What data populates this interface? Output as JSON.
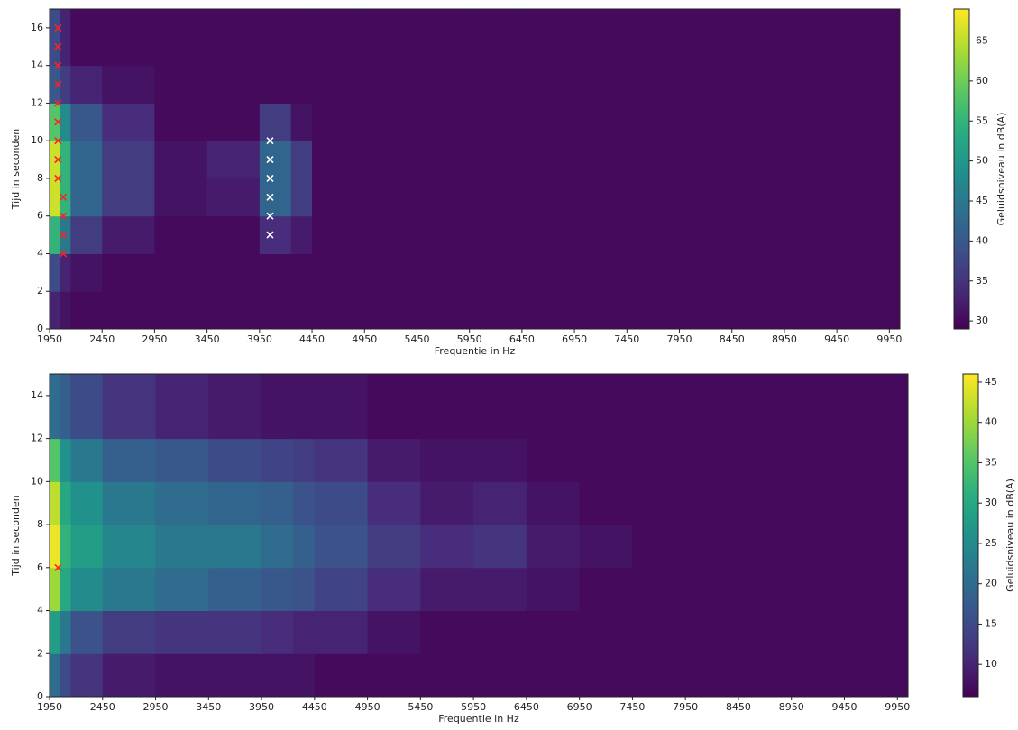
{
  "chart_data": [
    {
      "type": "heatmap",
      "xlabel": "Frequentie in Hz",
      "ylabel": "Tijd in seconden",
      "xlim": [
        1950,
        10050
      ],
      "ylim": [
        0,
        17
      ],
      "xticks": [
        1950,
        2450,
        2950,
        3450,
        3950,
        4450,
        4950,
        5450,
        5950,
        6450,
        6950,
        7450,
        7950,
        8450,
        8950,
        9450,
        9950
      ],
      "yticks": [
        0,
        2,
        4,
        6,
        8,
        10,
        12,
        14,
        16
      ],
      "xbins": [
        1950,
        2050,
        2150,
        2450,
        2950,
        3450,
        3950,
        4250,
        4450,
        4950,
        5450,
        5950,
        6450,
        6950,
        7450,
        8450,
        10050
      ],
      "ybins": [
        0,
        2,
        4,
        6,
        8,
        10,
        12,
        14,
        17
      ],
      "z": [
        [
          33,
          31,
          30,
          30,
          30,
          30,
          30,
          30,
          30,
          30,
          30,
          30,
          30,
          30,
          30,
          30
        ],
        [
          38,
          33,
          31,
          30,
          30,
          30,
          30,
          30,
          30,
          30,
          30,
          30,
          30,
          30,
          30,
          30
        ],
        [
          55,
          45,
          36,
          32,
          30,
          30,
          34,
          32,
          30,
          30,
          30,
          30,
          30,
          30,
          30,
          30
        ],
        [
          66,
          55,
          42,
          36,
          31,
          32,
          42,
          36,
          30,
          30,
          30,
          30,
          30,
          30,
          30,
          30
        ],
        [
          66,
          55,
          42,
          36,
          31,
          33,
          42,
          36,
          30,
          30,
          30,
          30,
          30,
          30,
          30,
          30
        ],
        [
          58,
          48,
          40,
          34,
          30,
          30,
          36,
          31,
          30,
          30,
          30,
          30,
          30,
          30,
          30,
          30
        ],
        [
          40,
          36,
          33,
          31,
          30,
          30,
          30,
          30,
          30,
          30,
          30,
          30,
          30,
          30,
          30,
          30
        ],
        [
          38,
          33,
          30,
          30,
          30,
          30,
          30,
          30,
          30,
          30,
          30,
          30,
          30,
          30,
          30,
          30
        ]
      ],
      "colormap": "viridis",
      "zlim": [
        29,
        69
      ],
      "zticks": [
        30,
        35,
        40,
        45,
        50,
        55,
        60,
        65
      ],
      "colorbar_label": "Geluidsniveau in dB(A)",
      "series": [
        {
          "marker": "x",
          "color": "#ff2020",
          "x": [
            2030,
            2030,
            2030,
            2030,
            2030,
            2030,
            2030,
            2030,
            2030,
            2080,
            2080,
            2080,
            2080
          ],
          "y": [
            16,
            15,
            14,
            13,
            12,
            11,
            10,
            9,
            8,
            7,
            6,
            5,
            4
          ]
        },
        {
          "marker": "x",
          "color": "#ffffff",
          "x": [
            4050,
            4050,
            4050,
            4050,
            4050,
            4050
          ],
          "y": [
            10,
            9,
            8,
            7,
            6,
            5
          ]
        }
      ]
    },
    {
      "type": "heatmap",
      "xlabel": "Frequentie in Hz",
      "ylabel": "Tijd in seconden",
      "xlim": [
        1950,
        10050
      ],
      "ylim": [
        0,
        15
      ],
      "xticks": [
        1950,
        2450,
        2950,
        3450,
        3950,
        4450,
        4950,
        5450,
        5950,
        6450,
        6950,
        7450,
        7950,
        8450,
        8950,
        9450,
        9950
      ],
      "yticks": [
        0,
        2,
        4,
        6,
        8,
        10,
        12,
        14
      ],
      "xbins": [
        1950,
        2050,
        2150,
        2450,
        2950,
        3450,
        3950,
        4250,
        4450,
        4950,
        5450,
        5950,
        6450,
        6950,
        7450,
        8450,
        10050
      ],
      "ybins": [
        0,
        2,
        4,
        6,
        8,
        10,
        12,
        15
      ],
      "z": [
        [
          20,
          15,
          12,
          9,
          8,
          8,
          8,
          8,
          7,
          7,
          7,
          7,
          7,
          7,
          7,
          7
        ],
        [
          28,
          22,
          16,
          13,
          12,
          12,
          11,
          10,
          10,
          8,
          7,
          7,
          7,
          7,
          7,
          7
        ],
        [
          40,
          30,
          25,
          22,
          20,
          18,
          17,
          16,
          14,
          11,
          9,
          9,
          8,
          7,
          7,
          7
        ],
        [
          45,
          32,
          28,
          24,
          22,
          22,
          20,
          18,
          16,
          13,
          11,
          12,
          9,
          8,
          7,
          7
        ],
        [
          42,
          30,
          26,
          22,
          20,
          19,
          18,
          16,
          15,
          11,
          9,
          10,
          8,
          7,
          7,
          7
        ],
        [
          35,
          26,
          22,
          18,
          17,
          15,
          14,
          13,
          12,
          9,
          8,
          8,
          7,
          7,
          7,
          7
        ],
        [
          20,
          18,
          15,
          12,
          10,
          9,
          8,
          8,
          8,
          7,
          7,
          7,
          7,
          7,
          7,
          7
        ]
      ],
      "colormap": "viridis",
      "zlim": [
        6,
        46
      ],
      "zticks": [
        10,
        15,
        20,
        25,
        30,
        35,
        40,
        45
      ],
      "colorbar_label": "Geluidsniveau in dB(A)",
      "series": [
        {
          "marker": "x",
          "color": "#ff2020",
          "x": [
            2030
          ],
          "y": [
            6
          ]
        }
      ]
    }
  ]
}
